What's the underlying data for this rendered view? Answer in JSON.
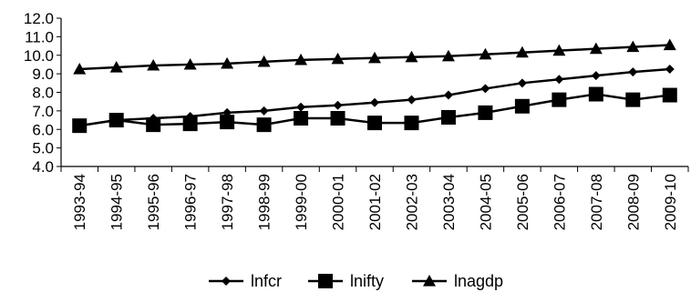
{
  "chart_data": {
    "type": "line",
    "title": "",
    "xlabel": "",
    "ylabel": "",
    "categories": [
      "1993-94",
      "1994-95",
      "1995-96",
      "1996-97",
      "1997-98",
      "1998-99",
      "1999-00",
      "2000-01",
      "2001-02",
      "2002-03",
      "2003-04",
      "2004-05",
      "2005-06",
      "2006-07",
      "2007-08",
      "2008-09",
      "2009-10"
    ],
    "ylim": [
      4.0,
      12.0
    ],
    "yticks": [
      "4.0",
      "5.0",
      "6.0",
      "7.0",
      "8.0",
      "9.0",
      "10.0",
      "11.0",
      "12.0"
    ],
    "grid": false,
    "legend_position": "bottom",
    "series": [
      {
        "name": "lnfcr",
        "marker": "diamond",
        "color": "#000000",
        "values": [
          6.2,
          6.5,
          6.6,
          6.7,
          6.9,
          7.0,
          7.2,
          7.3,
          7.45,
          7.6,
          7.85,
          8.2,
          8.5,
          8.7,
          8.9,
          9.1,
          9.25
        ]
      },
      {
        "name": "lnifty",
        "marker": "square",
        "color": "#000000",
        "values": [
          6.2,
          6.5,
          6.25,
          6.3,
          6.4,
          6.25,
          6.6,
          6.6,
          6.35,
          6.35,
          6.65,
          6.9,
          7.25,
          7.6,
          7.9,
          7.6,
          7.85
        ]
      },
      {
        "name": "lnagdp",
        "marker": "triangle",
        "color": "#000000",
        "values": [
          9.25,
          9.35,
          9.45,
          9.5,
          9.55,
          9.65,
          9.75,
          9.8,
          9.85,
          9.9,
          9.95,
          10.05,
          10.15,
          10.25,
          10.35,
          10.45,
          10.55
        ]
      }
    ]
  }
}
